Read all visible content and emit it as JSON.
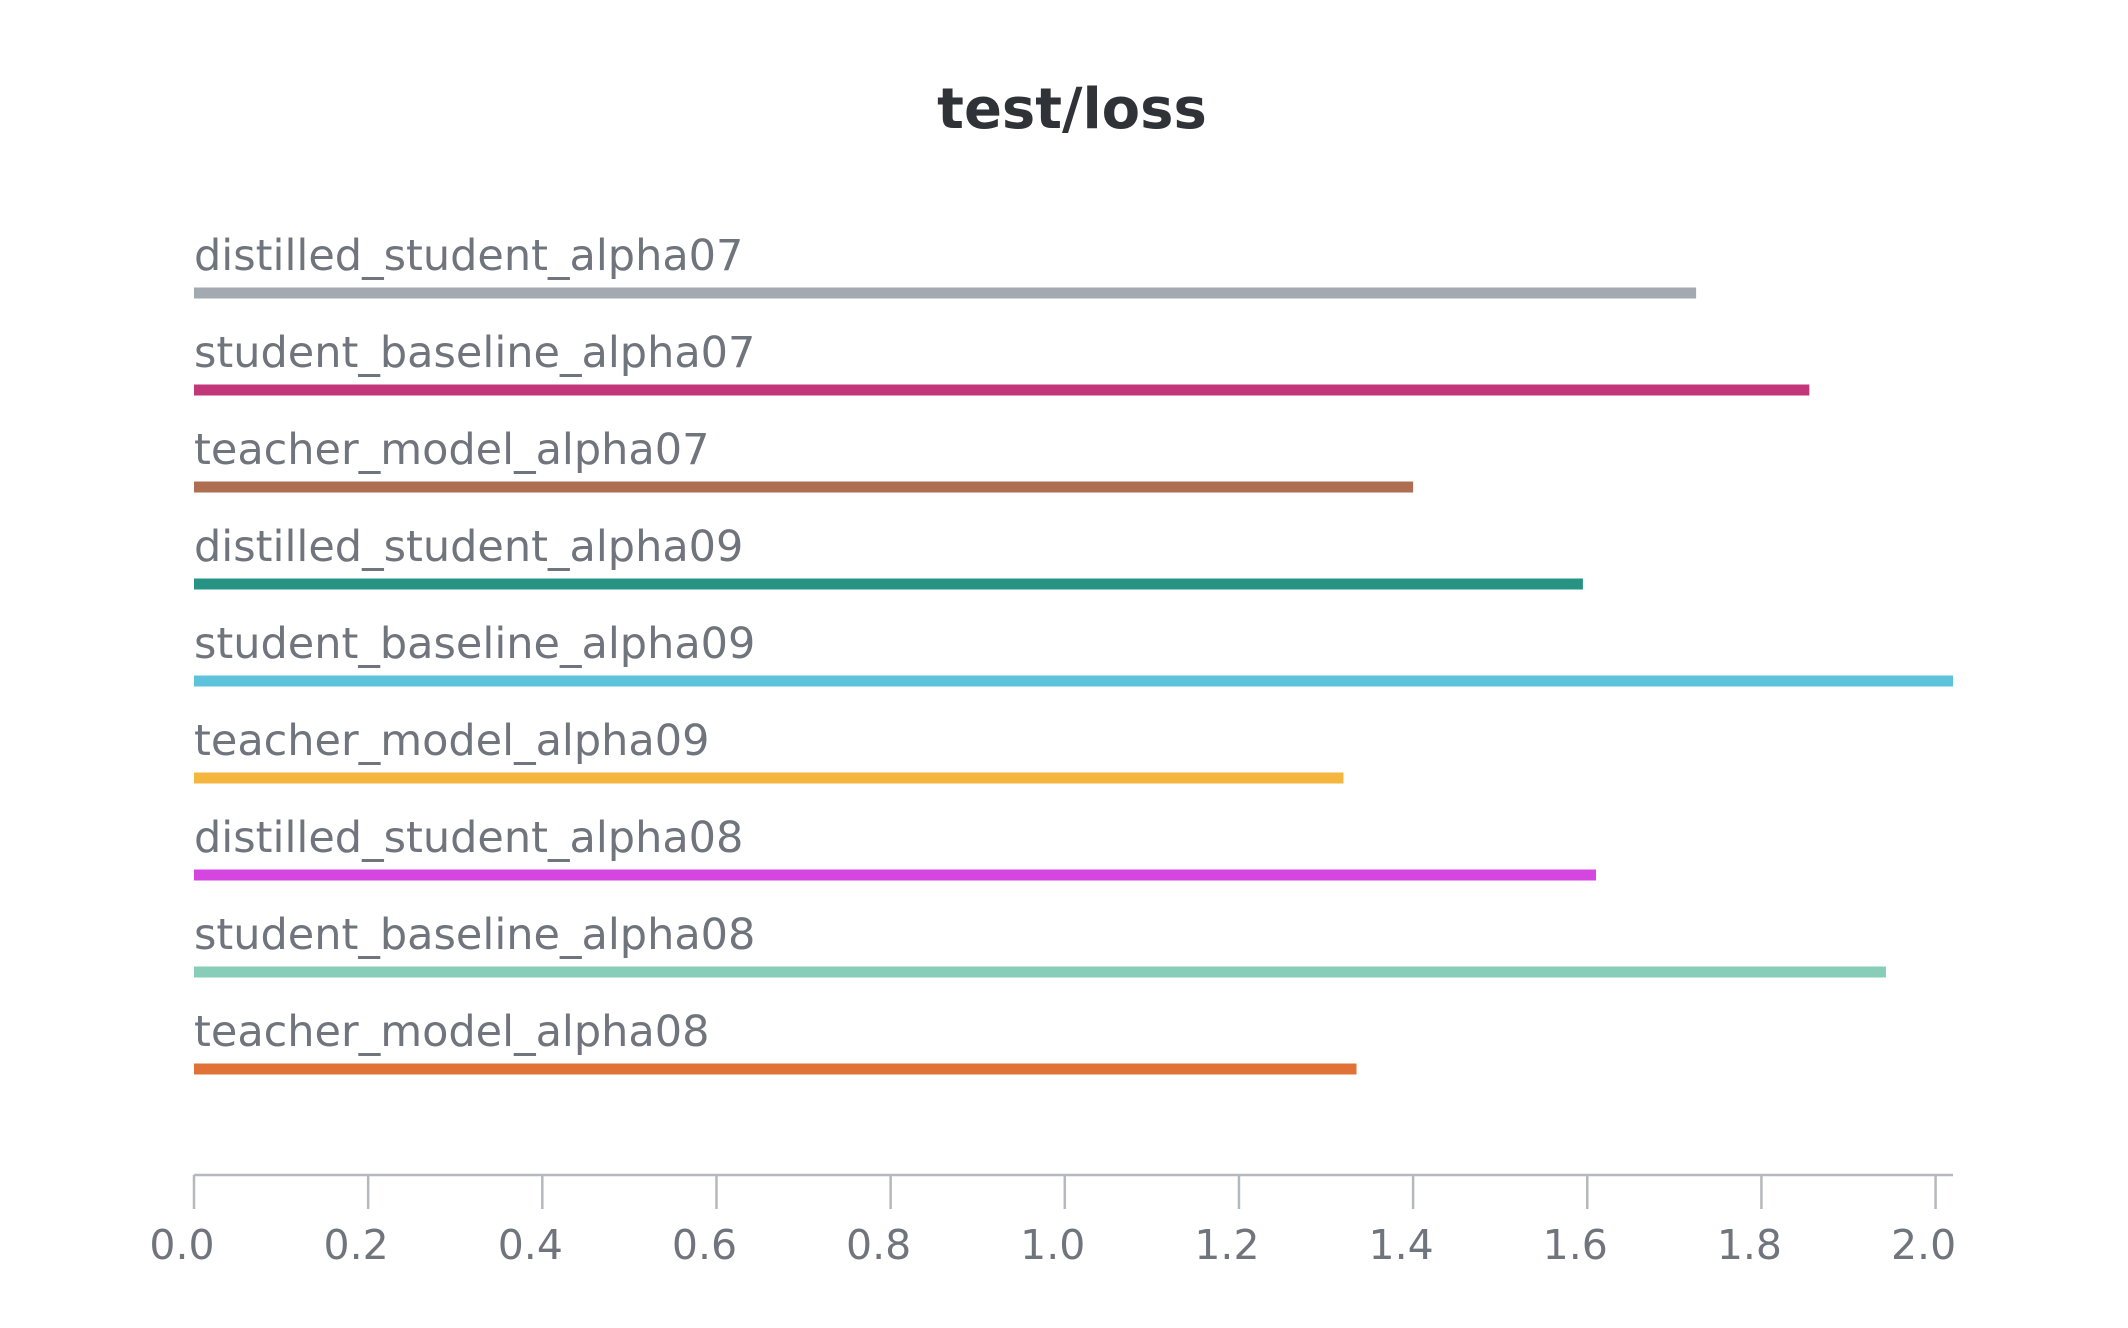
{
  "chart_data": {
    "type": "bar",
    "orientation": "horizontal",
    "title": "test/loss",
    "xlabel": "",
    "ylabel": "",
    "xlim": [
      0,
      2.02
    ],
    "ticks": [
      "0.0",
      "0.2",
      "0.4",
      "0.6",
      "0.8",
      "1.0",
      "1.2",
      "1.4",
      "1.6",
      "1.8",
      "2.0"
    ],
    "tick_values": [
      0,
      0.2,
      0.4,
      0.6,
      0.8,
      1.0,
      1.2,
      1.4,
      1.6,
      1.8,
      2.0
    ],
    "grid": false,
    "legend": "none",
    "categories": [
      "distilled_student_alpha07",
      "student_baseline_alpha07",
      "teacher_model_alpha07",
      "distilled_student_alpha09",
      "student_baseline_alpha09",
      "teacher_model_alpha09",
      "distilled_student_alpha08",
      "student_baseline_alpha08",
      "teacher_model_alpha08"
    ],
    "values": [
      1.725,
      1.855,
      1.4,
      1.595,
      2.02,
      1.32,
      1.61,
      1.943,
      1.335
    ],
    "colors": [
      "#a2a9b0",
      "#c1377a",
      "#ad6e52",
      "#269384",
      "#5cc3da",
      "#f5b63f",
      "#d546e0",
      "#87cdb8",
      "#e07238"
    ]
  }
}
